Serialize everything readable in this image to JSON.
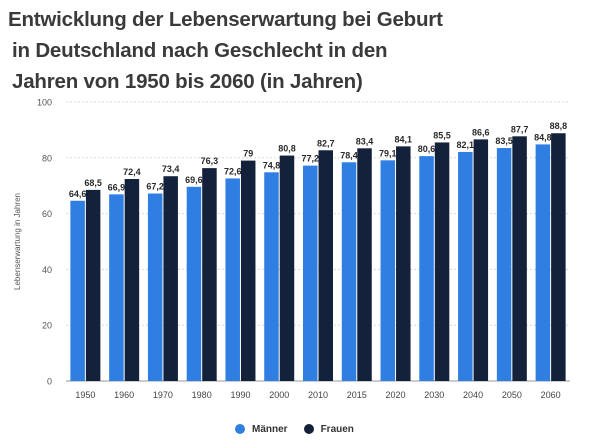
{
  "title_lines": [
    "Entwicklung der Lebenserwartung bei Geburt",
    "in Deutschland nach Geschlecht in den",
    "Jahren von 1950 bis 2060 (in Jahren)"
  ],
  "colors": {
    "maenner": "#2f7ee2",
    "frauen": "#14213a",
    "grid": "#d9d9d9",
    "text": "#333333"
  },
  "chart_data": {
    "type": "bar",
    "title": "Entwicklung der Lebenserwartung bei Geburt in Deutschland nach Geschlecht in den Jahren von 1950 bis 2060 (in Jahren)",
    "xlabel": "",
    "ylabel": "Lebenserwartung in Jahren",
    "ylim": [
      0,
      100
    ],
    "yticks": [
      0,
      20,
      40,
      60,
      80,
      100
    ],
    "grid": true,
    "legend": "bottom-center",
    "categories": [
      "1950",
      "1960",
      "1970",
      "1980",
      "1990",
      "2000",
      "2010",
      "2015",
      "2020",
      "2030",
      "2040",
      "2050",
      "2060"
    ],
    "series": [
      {
        "name": "Männer",
        "values": [
          64.6,
          66.9,
          67.2,
          69.6,
          72.6,
          74.8,
          77.2,
          78.4,
          79.1,
          80.6,
          82.1,
          83.5,
          84.8
        ],
        "labels": [
          "64,6",
          "66,9",
          "67,2",
          "69,6",
          "72,6",
          "74,8",
          "77,2",
          "78,4",
          "79,1",
          "80,6",
          "82,1",
          "83,5",
          "84,8"
        ]
      },
      {
        "name": "Frauen",
        "values": [
          68.5,
          72.4,
          73.4,
          76.3,
          79,
          80.8,
          82.7,
          83.4,
          84.1,
          85.5,
          86.6,
          87.7,
          88.8
        ],
        "labels": [
          "68,5",
          "72,4",
          "73,4",
          "76,3",
          "79",
          "80,8",
          "82,7",
          "83,4",
          "84,1",
          "85,5",
          "86,6",
          "87,7",
          "88,8"
        ]
      }
    ]
  }
}
